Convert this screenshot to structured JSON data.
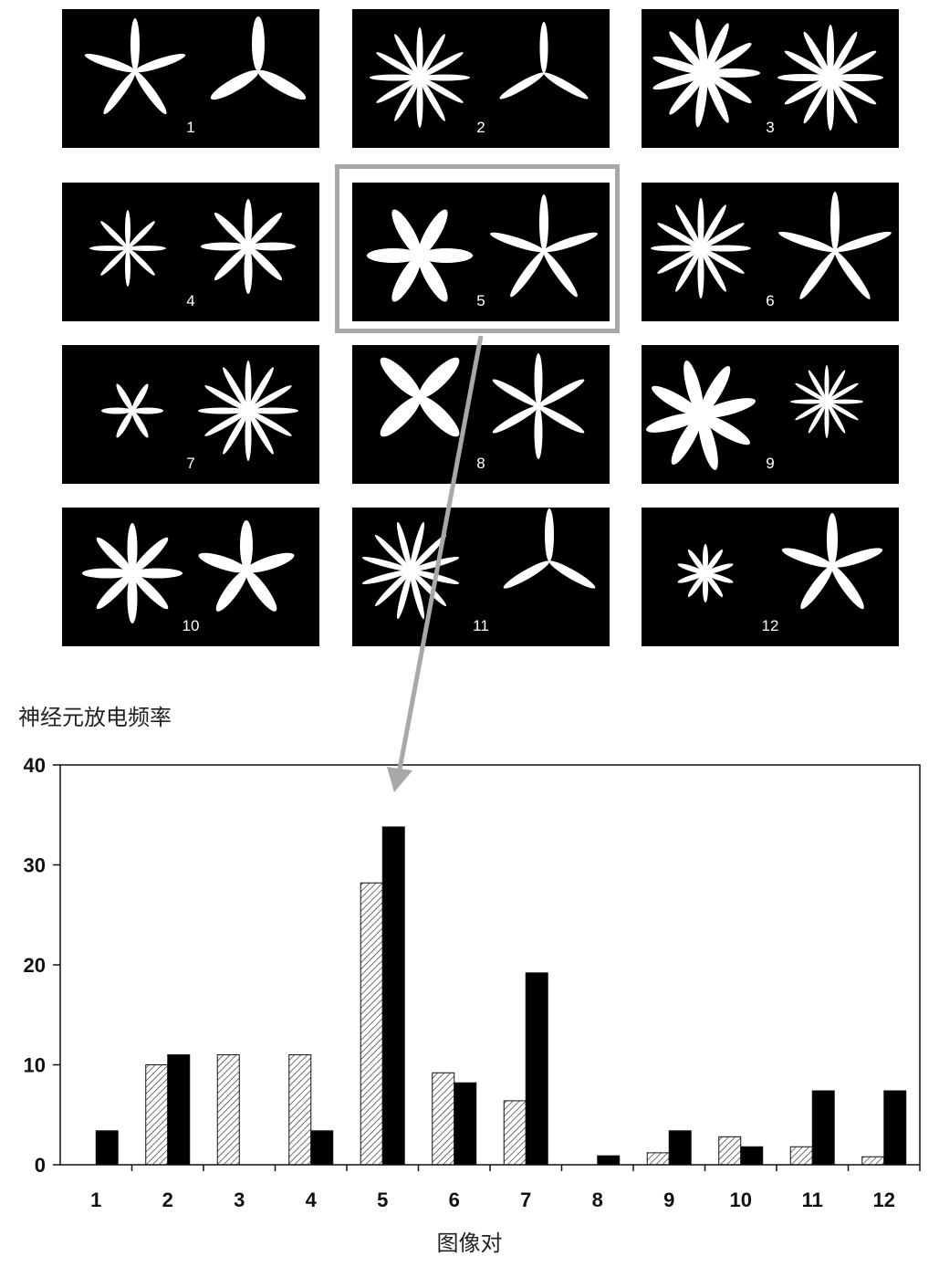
{
  "panels": [
    {
      "label": "1"
    },
    {
      "label": "2"
    },
    {
      "label": "3"
    },
    {
      "label": "4"
    },
    {
      "label": "5"
    },
    {
      "label": "6"
    },
    {
      "label": "7"
    },
    {
      "label": "8"
    },
    {
      "label": "9"
    },
    {
      "label": "10"
    },
    {
      "label": "11"
    },
    {
      "label": "12"
    }
  ],
  "highlight_panel": "5",
  "colors": {
    "panel_bg": "#000000",
    "callout": "#a8a8a8",
    "bar_solid": "#000000",
    "bar_hatched": "#ffffff"
  },
  "chart_data": {
    "type": "bar",
    "ylabel": "神经元放电频率",
    "xlabel": "图像对",
    "categories": [
      "1",
      "2",
      "3",
      "4",
      "5",
      "6",
      "7",
      "8",
      "9",
      "10",
      "11",
      "12"
    ],
    "series": [
      {
        "pattern": "hatched",
        "values": [
          0,
          10,
          11,
          11,
          28.2,
          9.2,
          6.4,
          0,
          1.2,
          2.8,
          1.8,
          0.8
        ]
      },
      {
        "pattern": "solid",
        "values": [
          3.4,
          11,
          0,
          3.4,
          33.8,
          8.2,
          19.2,
          0.9,
          3.4,
          1.8,
          7.4,
          7.4
        ]
      }
    ],
    "yticks": [
      "0",
      "10",
      "20",
      "30",
      "40"
    ],
    "ylim": [
      0,
      40
    ],
    "grid": false
  }
}
